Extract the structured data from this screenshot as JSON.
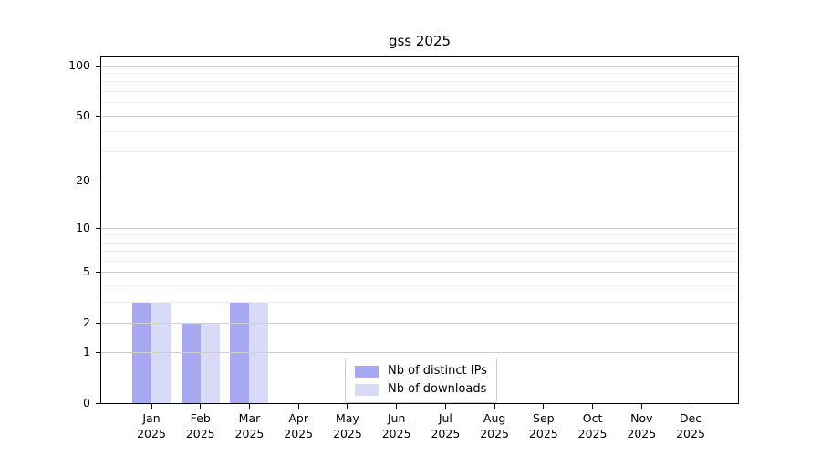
{
  "title": "gss 2025",
  "chart_data": {
    "type": "bar",
    "title": "gss 2025",
    "months": [
      "Jan",
      "Feb",
      "Mar",
      "Apr",
      "May",
      "Jun",
      "Jul",
      "Aug",
      "Sep",
      "Oct",
      "Nov",
      "Dec"
    ],
    "year": "2025",
    "series": [
      {
        "name": "Nb of distinct IPs",
        "color": "#a8a8f2",
        "values": [
          3,
          2,
          3,
          0,
          0,
          0,
          0,
          0,
          0,
          0,
          0,
          0
        ]
      },
      {
        "name": "Nb of downloads",
        "color": "#d9d9f8",
        "values": [
          3,
          2,
          3,
          0,
          0,
          0,
          0,
          0,
          0,
          0,
          0,
          0
        ]
      }
    ],
    "y_ticks": [
      0,
      1,
      2,
      5,
      10,
      20,
      50,
      100
    ],
    "y_minor_gridlines": [
      3,
      4,
      6,
      7,
      8,
      9,
      30,
      40,
      60,
      70,
      80,
      90
    ],
    "y_scale": "log1p",
    "ylim": [
      0,
      113
    ],
    "grid": true,
    "grid_over_bars": true,
    "legend_position": "lower center",
    "colors": {
      "grid_major": "#cfcfcf",
      "grid_minor": "#ececec",
      "axis": "#000000",
      "background": "#ffffff"
    }
  },
  "legend": {
    "items": [
      {
        "label": "Nb of distinct IPs"
      },
      {
        "label": "Nb of downloads"
      }
    ]
  }
}
